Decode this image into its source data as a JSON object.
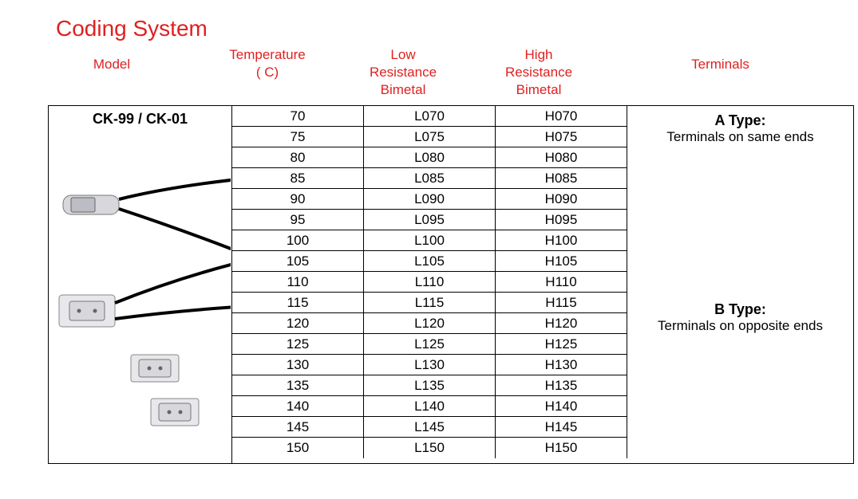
{
  "title": "Coding System",
  "headers": {
    "model": "Model",
    "temp_l1": "Temperature",
    "temp_l2": "( C)",
    "low_l1": "Low",
    "low_l2": "Resistance",
    "low_l3": "Bimetal",
    "high_l1": "High",
    "high_l2": "Resistance",
    "high_l3": "Bimetal",
    "terminals": "Terminals"
  },
  "model_label": "CK-99 / CK-01",
  "terminals": {
    "a_title": "A Type:",
    "a_desc": "Terminals on same ends",
    "b_title": "B Type:",
    "b_desc": "Terminals on opposite ends"
  },
  "table": {
    "columns": [
      "temp",
      "low",
      "high"
    ],
    "rows": [
      [
        "70",
        "L070",
        "H070"
      ],
      [
        "75",
        "L075",
        "H075"
      ],
      [
        "80",
        "L080",
        "H080"
      ],
      [
        "85",
        "L085",
        "H085"
      ],
      [
        "90",
        "L090",
        "H090"
      ],
      [
        "95",
        "L095",
        "H095"
      ],
      [
        "100",
        "L100",
        "H100"
      ],
      [
        "105",
        "L105",
        "H105"
      ],
      [
        "110",
        "L110",
        "H110"
      ],
      [
        "115",
        "L115",
        "H115"
      ],
      [
        "120",
        "L120",
        "H120"
      ],
      [
        "125",
        "L125",
        "H125"
      ],
      [
        "130",
        "L130",
        "H130"
      ],
      [
        "135",
        "L135",
        "H135"
      ],
      [
        "140",
        "L140",
        "H140"
      ],
      [
        "145",
        "L145",
        "H145"
      ],
      [
        "150",
        "L150",
        "H150"
      ]
    ]
  },
  "colors": {
    "accent": "#e02020",
    "border": "#000000",
    "bg": "#ffffff"
  }
}
